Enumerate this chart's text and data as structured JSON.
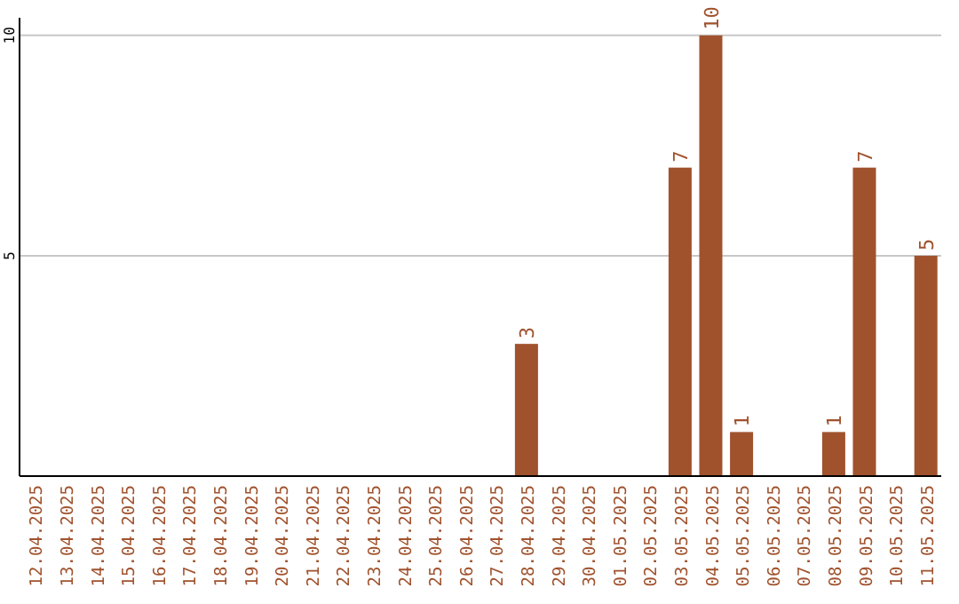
{
  "chart_data": {
    "type": "bar",
    "categories": [
      "12.04.2025",
      "13.04.2025",
      "14.04.2025",
      "15.04.2025",
      "16.04.2025",
      "17.04.2025",
      "18.04.2025",
      "19.04.2025",
      "20.04.2025",
      "21.04.2025",
      "22.04.2025",
      "23.04.2025",
      "24.04.2025",
      "25.04.2025",
      "26.04.2025",
      "27.04.2025",
      "28.04.2025",
      "29.04.2025",
      "30.04.2025",
      "01.05.2025",
      "02.05.2025",
      "03.05.2025",
      "04.05.2025",
      "05.05.2025",
      "06.05.2025",
      "07.05.2025",
      "08.05.2025",
      "09.05.2025",
      "10.05.2025",
      "11.05.2025"
    ],
    "values": [
      0,
      0,
      0,
      0,
      0,
      0,
      0,
      0,
      0,
      0,
      0,
      0,
      0,
      0,
      0,
      0,
      3,
      0,
      0,
      0,
      0,
      7,
      10,
      1,
      0,
      0,
      1,
      7,
      0,
      5
    ],
    "value_labels": [
      null,
      null,
      null,
      null,
      null,
      null,
      null,
      null,
      null,
      null,
      null,
      null,
      null,
      null,
      null,
      null,
      "3",
      null,
      null,
      null,
      null,
      "7",
      "10",
      "1",
      null,
      null,
      "1",
      "7",
      null,
      "5"
    ],
    "color": "#a0522d",
    "ylim": [
      0,
      10.4
    ],
    "yticks": [
      5,
      10
    ],
    "grid": "y"
  }
}
